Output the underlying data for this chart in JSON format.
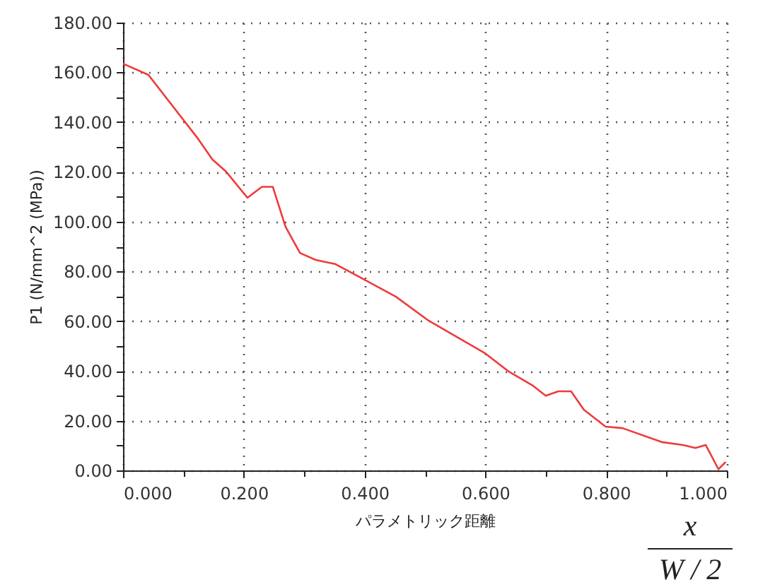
{
  "chart_data": {
    "type": "line",
    "xlabel": "パラメトリック距離",
    "ylabel": "P1 (N/mm^2 (MPa))",
    "annotations": [
      "x",
      "W / 2"
    ],
    "x": [
      0,
      0.042,
      0.124,
      0.148,
      0.171,
      0.206,
      0.23,
      0.248,
      0.269,
      0.293,
      0.319,
      0.351,
      0.405,
      0.452,
      0.506,
      0.6,
      0.639,
      0.679,
      0.7,
      0.721,
      0.742,
      0.763,
      0.799,
      0.827,
      0.892,
      0.927,
      0.948,
      0.965,
      0.986,
      0.998
    ],
    "series": [
      {
        "color": "#ee3b3b",
        "values": [
          163.5,
          159,
          133.4,
          125,
          120,
          109.6,
          114,
          114,
          98,
          87.4,
          84.6,
          83,
          76,
          69.8,
          60.2,
          47,
          39.7,
          34,
          30,
          31.8,
          31.8,
          24.4,
          17.6,
          17,
          11.4,
          10.2,
          9,
          10.2,
          0.5,
          3.4
        ]
      }
    ],
    "xlim": [
      0,
      1
    ],
    "ylim": [
      0,
      180
    ],
    "xticks": [
      {
        "value": 0,
        "label": "0.000"
      },
      {
        "value": 0.1,
        "label": null
      },
      {
        "value": 0.2,
        "label": "0.200"
      },
      {
        "value": 0.3,
        "label": null
      },
      {
        "value": 0.4,
        "label": "0.400"
      },
      {
        "value": 0.5,
        "label": null
      },
      {
        "value": 0.6,
        "label": "0.600"
      },
      {
        "value": 0.7,
        "label": null
      },
      {
        "value": 0.8,
        "label": "0.800"
      },
      {
        "value": 0.9,
        "label": null
      },
      {
        "value": 1,
        "label": "1.000"
      }
    ],
    "yticks": [
      {
        "value": 0,
        "label": "0.00"
      },
      {
        "value": 10,
        "label": null
      },
      {
        "value": 20,
        "label": "20.00"
      },
      {
        "value": 30,
        "label": null
      },
      {
        "value": 40,
        "label": "40.00"
      },
      {
        "value": 50,
        "label": null
      },
      {
        "value": 60,
        "label": "60.00"
      },
      {
        "value": 70,
        "label": null
      },
      {
        "value": 80,
        "label": "80.00"
      },
      {
        "value": 90,
        "label": null
      },
      {
        "value": 100,
        "label": "100.00"
      },
      {
        "value": 110,
        "label": null
      },
      {
        "value": 120,
        "label": "120.00"
      },
      {
        "value": 130,
        "label": null
      },
      {
        "value": 140,
        "label": "140.00"
      },
      {
        "value": 150,
        "label": null
      },
      {
        "value": 160,
        "label": "160.00"
      },
      {
        "value": 170,
        "label": null
      },
      {
        "value": 180,
        "label": "180.00"
      }
    ],
    "grid": true,
    "line_style": "solid",
    "marker": "none"
  }
}
